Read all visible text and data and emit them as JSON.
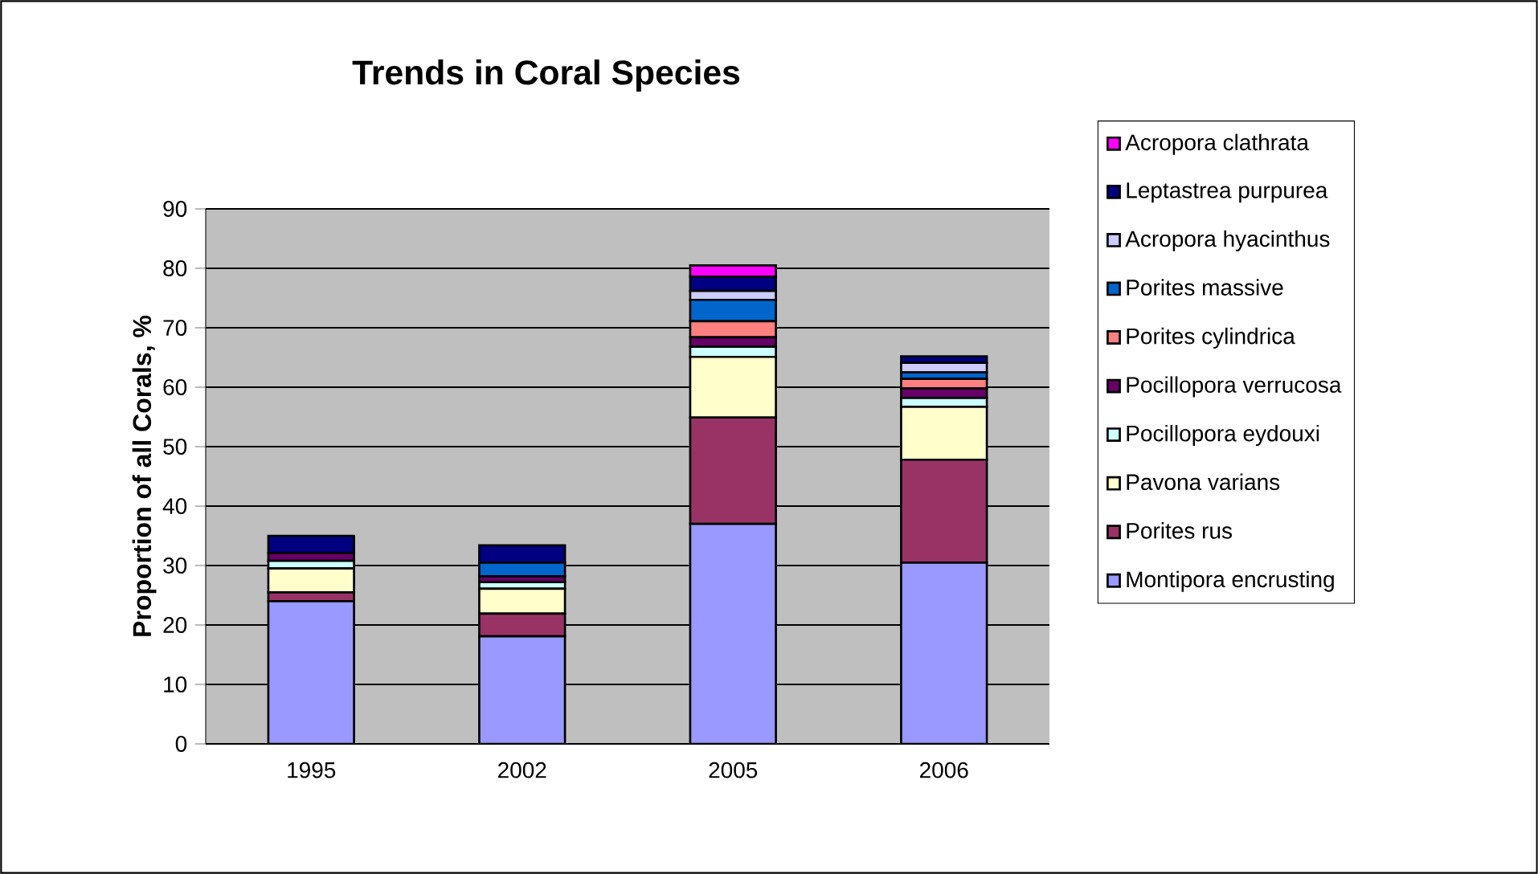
{
  "chart_data": {
    "type": "bar",
    "title": "Trends in Coral Species",
    "ylabel": "Proportion of all Corals, %",
    "categories": [
      "1995",
      "2002",
      "2005",
      "2006"
    ],
    "stacked": true,
    "ylim": [
      0,
      90
    ],
    "yticks": [
      0,
      10,
      20,
      30,
      40,
      50,
      60,
      70,
      80,
      90
    ],
    "grid": "y",
    "legend": "right",
    "series": [
      {
        "name": "Montipora encrusting",
        "color": "#9999ff",
        "values": [
          24,
          18.1,
          37.0,
          30.5
        ]
      },
      {
        "name": "Porites rus",
        "color": "#993366",
        "values": [
          1.5,
          3.8,
          17.9,
          17.3
        ]
      },
      {
        "name": "Pavona varians",
        "color": "#ffffcc",
        "values": [
          4,
          4.2,
          10.2,
          8.9
        ]
      },
      {
        "name": "Pocillopora eydouxi",
        "color": "#ccffff",
        "values": [
          1.3,
          1.1,
          1.7,
          1.5
        ]
      },
      {
        "name": "Pocillopora verrucosa",
        "color": "#660066",
        "values": [
          1.3,
          1.0,
          1.6,
          1.6
        ]
      },
      {
        "name": "Porites cylindrica",
        "color": "#ff8080",
        "values": [
          0,
          0,
          2.7,
          1.6
        ]
      },
      {
        "name": "Porites massive",
        "color": "#0066cc",
        "values": [
          0,
          2.3,
          3.6,
          1.1
        ]
      },
      {
        "name": "Acropora hyacinthus",
        "color": "#ccccff",
        "values": [
          0,
          0,
          1.5,
          1.6
        ]
      },
      {
        "name": "Leptastrea purpurea",
        "color": "#000080",
        "values": [
          2.9,
          2.9,
          2.4,
          1.1
        ]
      },
      {
        "name": "Acropora clathrata",
        "color": "#ff00ff",
        "values": [
          0,
          0,
          1.9,
          0
        ]
      }
    ]
  }
}
